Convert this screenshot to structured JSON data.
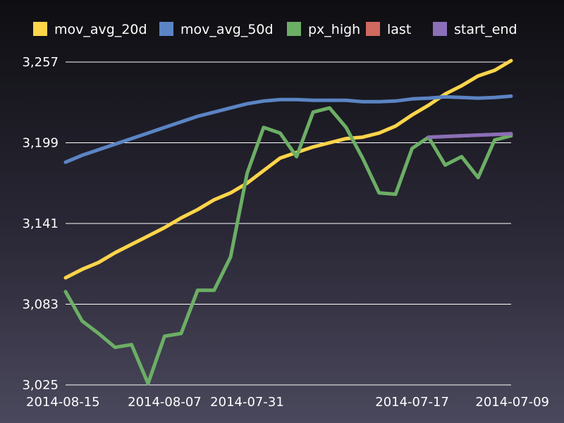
{
  "chart_data": {
    "type": "line",
    "title": "",
    "xlabel": "",
    "ylabel": "",
    "ylim": [
      3025,
      3257
    ],
    "yticks": [
      "3,025",
      "3,083",
      "3,141",
      "3,199",
      "3,257"
    ],
    "ytick_values": [
      3025,
      3083,
      3141,
      3199,
      3257
    ],
    "xticks": [
      {
        "index": 0,
        "label": "2014-08-15"
      },
      {
        "index": 6,
        "label": "2014-08-07"
      },
      {
        "index": 11,
        "label": "2014-07-31"
      },
      {
        "index": 21,
        "label": "2014-07-17"
      },
      {
        "index": 27,
        "label": "2014-07-09"
      }
    ],
    "grid": true,
    "legend_position": "top",
    "n_points": 28,
    "series": [
      {
        "name": "mov_avg_20d",
        "color": "#ffd54a",
        "x_start": 0,
        "values": [
          3102,
          3108,
          3113,
          3120,
          3126,
          3132,
          3138,
          3145,
          3151,
          3158,
          3163,
          3170,
          3179,
          3188,
          3192,
          3196,
          3199,
          3202,
          3203,
          3206,
          3211,
          3219,
          3226,
          3234,
          3240,
          3247,
          3251,
          3258
        ]
      },
      {
        "name": "mov_avg_50d",
        "color": "#5b84c4",
        "x_start": 0,
        "values": [
          3185,
          3190,
          3194,
          3198,
          3202,
          3206,
          3210,
          3214,
          3218,
          3221,
          3224,
          3227,
          3229,
          3230,
          3230,
          3229.5,
          3229.5,
          3229.5,
          3228.5,
          3228.5,
          3229,
          3230.5,
          3231,
          3232,
          3231.5,
          3231,
          3231.5,
          3232.5
        ]
      },
      {
        "name": "px_high",
        "color": "#6cae65",
        "x_start": 0,
        "values": [
          3092,
          3071,
          3062,
          3052,
          3054,
          3026,
          3060,
          3062,
          3093,
          3093,
          3117,
          3177,
          3210,
          3206,
          3189,
          3221,
          3224,
          3210,
          3188,
          3163,
          3162,
          3195,
          3203,
          3183,
          3189,
          3174,
          3201,
          3204
        ]
      },
      {
        "name": "last",
        "color": "#d0695f",
        "x_start": 22,
        "values": [
          3203,
          3203.5,
          3204,
          3204.5,
          3205,
          3205.5
        ]
      },
      {
        "name": "start_end",
        "color": "#8b6fb8",
        "x_start": 22,
        "values": [
          3203,
          3203.5,
          3204,
          3204.5,
          3205,
          3205.5
        ]
      }
    ]
  }
}
